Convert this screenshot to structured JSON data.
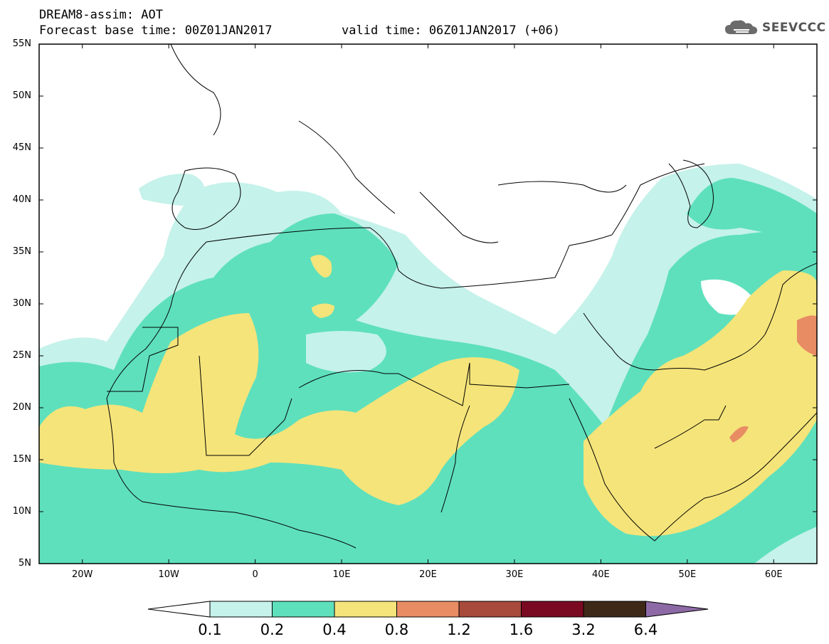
{
  "header": {
    "title_line1": "DREAM8-assim: AOT",
    "title_line2": "Forecast base time: 00Z01JAN2017",
    "valid_time": "valid time: 06Z01JAN2017 (+06)"
  },
  "logo": {
    "text": "SEEVCCC",
    "icon": "cloud-icon"
  },
  "map": {
    "lat_labels": [
      "55N",
      "50N",
      "45N",
      "40N",
      "35N",
      "30N",
      "25N",
      "20N",
      "15N",
      "10N",
      "5N"
    ],
    "lon_labels": [
      "20W",
      "10W",
      "0",
      "10E",
      "20E",
      "30E",
      "40E",
      "50E",
      "60E"
    ],
    "extent": {
      "lon_min": -25,
      "lon_max": 65,
      "lat_min": 5,
      "lat_max": 55
    }
  },
  "colorbar": {
    "labels": [
      "0.1",
      "0.2",
      "0.4",
      "0.8",
      "1.2",
      "1.6",
      "3.2",
      "6.4"
    ],
    "colors": [
      "#ffffff",
      "#c5f2ea",
      "#5ee0bc",
      "#f5e47a",
      "#e88c64",
      "#a84a3c",
      "#7a0a22",
      "#3e2818",
      "#8d6aa6"
    ]
  }
}
